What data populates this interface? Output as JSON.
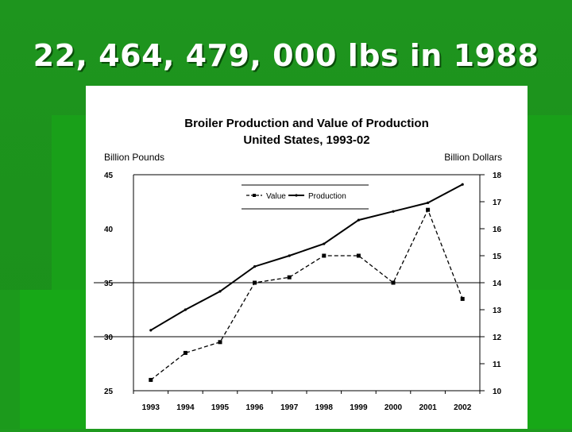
{
  "slide": {
    "title": "22, 464, 479, 000 lbs in 1988"
  },
  "colors": {
    "background": "#1f9a1f",
    "panel": "#ffffff",
    "ink": "#000000"
  },
  "chart_data": {
    "type": "line",
    "title": "Broiler Production and Value of Production",
    "subtitle": "United States, 1993-02",
    "ylabel_left": "Billion Pounds",
    "ylabel_right": "Billion Dollars",
    "categories": [
      "1993",
      "1994",
      "1995",
      "1996",
      "1997",
      "1998",
      "1999",
      "2000",
      "2001",
      "2002"
    ],
    "y_left_ticks": [
      "45",
      "40",
      "35",
      "30",
      "25"
    ],
    "y_right_ticks": [
      "18",
      "17",
      "16",
      "15",
      "14",
      "13",
      "12",
      "11",
      "10"
    ],
    "ylim_left": [
      25,
      45
    ],
    "ylim_right": [
      10,
      18
    ],
    "grid": "horizontal at 35 and 30",
    "legend_position": "top-left inside plot",
    "series": [
      {
        "name": "Value",
        "axis": "right",
        "style": "dashed-square",
        "values": [
          10.4,
          11.4,
          11.8,
          14.0,
          14.2,
          15.0,
          15.0,
          14.0,
          16.7,
          13.4
        ]
      },
      {
        "name": "Production",
        "axis": "left",
        "style": "solid",
        "values": [
          30.6,
          32.5,
          34.2,
          36.5,
          37.5,
          38.6,
          40.8,
          41.6,
          42.4,
          44.1
        ]
      }
    ]
  }
}
